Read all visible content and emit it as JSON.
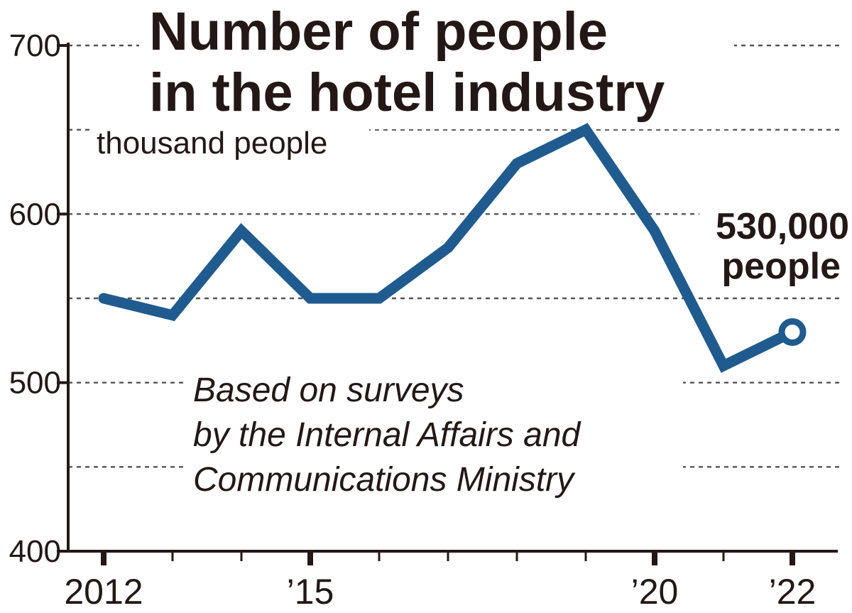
{
  "chart_data": {
    "type": "line",
    "title_lines": [
      "Number of people",
      "in the hotel industry"
    ],
    "unit_label": "thousand people",
    "source_lines": [
      "Based on surveys",
      "by the Internal Affairs and",
      "Communications Ministry"
    ],
    "callout_lines": [
      "530,000",
      "people"
    ],
    "x": [
      2012,
      2013,
      2014,
      2015,
      2016,
      2017,
      2018,
      2019,
      2020,
      2021,
      2022
    ],
    "x_tick_labels": [
      "2012",
      "",
      "",
      "’15",
      "",
      "",
      "",
      "",
      "’20",
      "",
      "’22"
    ],
    "series": [
      {
        "values": [
          550,
          540,
          590,
          550,
          550,
          580,
          630,
          650,
          590,
          510,
          530
        ]
      }
    ],
    "y_ticks": [
      400,
      500,
      600,
      700
    ],
    "y_gridlines": [
      450,
      500,
      550,
      600,
      650,
      700
    ],
    "ylim": [
      400,
      700
    ],
    "xlim": [
      2012,
      2022
    ],
    "grid": true,
    "line_color": "#1f5b8e",
    "text_color": "#231815"
  }
}
